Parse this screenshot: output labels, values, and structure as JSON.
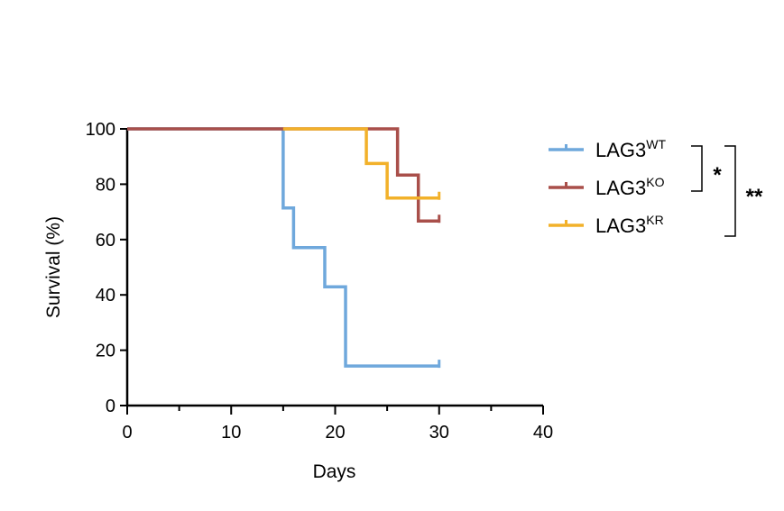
{
  "chart_data": {
    "type": "line",
    "step": true,
    "xlabel": "Days",
    "ylabel": "Survival (%)",
    "xlim": [
      0,
      40
    ],
    "ylim": [
      0,
      100
    ],
    "xticks": [
      0,
      10,
      20,
      30,
      40
    ],
    "yticks": [
      0,
      20,
      40,
      60,
      80,
      100
    ],
    "grid": false,
    "legend_position": "right",
    "series": [
      {
        "name_base": "LAG3",
        "name_sup": "WT",
        "color": "#6fa8dc",
        "x": [
          0,
          15,
          16,
          19,
          21,
          30
        ],
        "y": [
          100,
          71.4,
          57.1,
          42.9,
          14.3,
          14.3
        ],
        "censored_at": [
          30
        ]
      },
      {
        "name_base": "LAG3",
        "name_sup": "KO",
        "color": "#a94f4a",
        "x": [
          0,
          26,
          28,
          30
        ],
        "y": [
          100,
          83.3,
          66.7,
          66.7
        ],
        "censored_at": [
          30
        ]
      },
      {
        "name_base": "LAG3",
        "name_sup": "KR",
        "color": "#f2b12a",
        "x": [
          15,
          23,
          25,
          30
        ],
        "y": [
          100,
          87.5,
          75,
          75
        ],
        "censored_at": [
          30
        ]
      }
    ],
    "significance": [
      {
        "label": "*",
        "between": [
          "WT",
          "KO"
        ]
      },
      {
        "label": "**",
        "between": [
          "WT",
          "KR"
        ]
      }
    ]
  }
}
